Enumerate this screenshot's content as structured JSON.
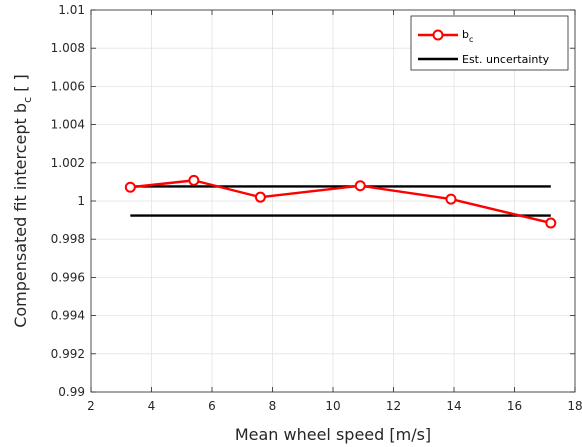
{
  "chart_data": {
    "type": "line",
    "xlabel": "Mean wheel speed [m/s]",
    "ylabel_main": "Compensated fit intercept b",
    "ylabel_sub": "c",
    "ylabel_unit": " [ ]",
    "xlim": [
      2,
      18
    ],
    "ylim": [
      0.99,
      1.01
    ],
    "xticks": [
      2,
      4,
      6,
      8,
      10,
      12,
      14,
      16,
      18
    ],
    "xtick_labels": [
      "2",
      "4",
      "6",
      "8",
      "10",
      "12",
      "14",
      "16",
      "18"
    ],
    "yticks": [
      0.99,
      0.992,
      0.994,
      0.996,
      0.998,
      1.0,
      1.002,
      1.004,
      1.006,
      1.008,
      1.01
    ],
    "ytick_labels": [
      "0.99",
      "0.992",
      "0.994",
      "0.996",
      "0.998",
      "1",
      "1.002",
      "1.004",
      "1.006",
      "1.008",
      "1.01"
    ],
    "grid": true,
    "legend_position": "top-right",
    "series": [
      {
        "name_main": "b",
        "name_sub": "c",
        "color": "#ff0000",
        "marker": "circle",
        "x": [
          3.3,
          5.4,
          7.6,
          10.9,
          13.9,
          17.2
        ],
        "y": [
          1.00072,
          1.00108,
          1.0002,
          1.0008,
          1.0001,
          0.99885
        ]
      },
      {
        "name": "Est. uncertainty",
        "color": "#000000",
        "lines": [
          {
            "x": [
              3.3,
              17.2
            ],
            "y": [
              1.00076,
              1.00076
            ]
          },
          {
            "x": [
              3.3,
              17.2
            ],
            "y": [
              0.99924,
              0.99924
            ]
          }
        ]
      }
    ]
  }
}
